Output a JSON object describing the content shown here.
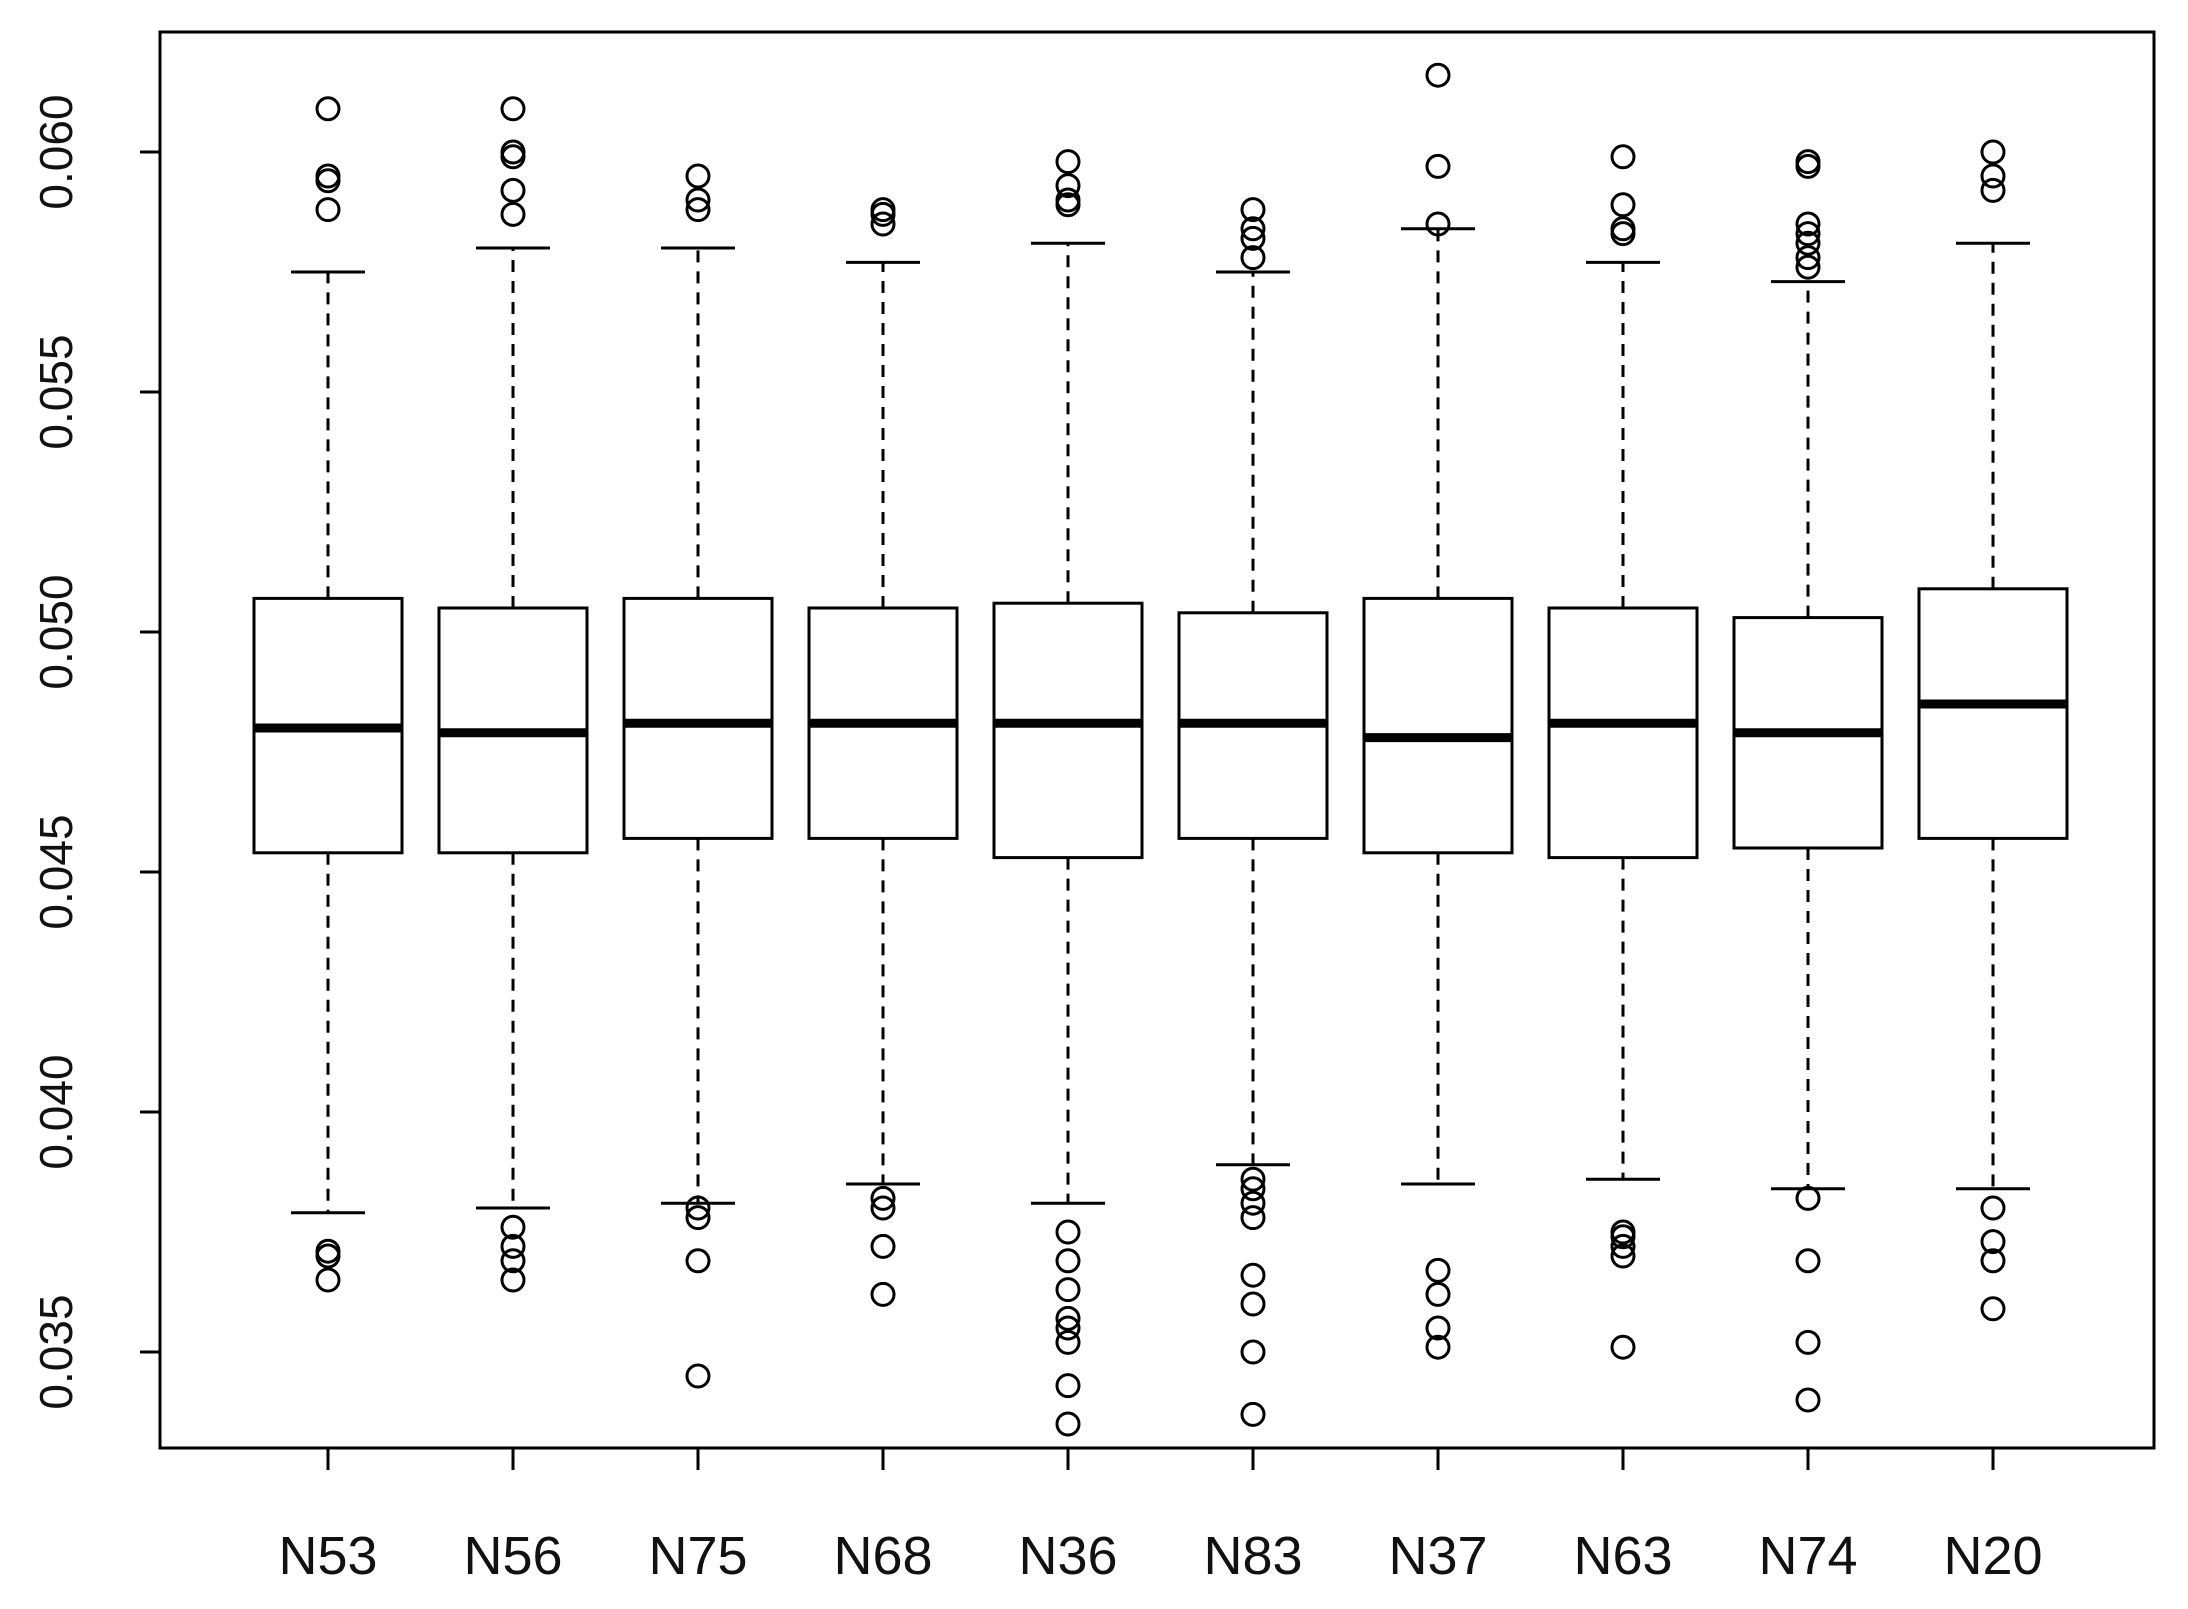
{
  "chart_data": {
    "type": "boxplot",
    "title": "",
    "xlabel": "",
    "ylabel": "",
    "ylim": [
      0.033,
      0.0625
    ],
    "y_ticks": [
      {
        "value": 0.035,
        "label": "0.035"
      },
      {
        "value": 0.04,
        "label": "0.040"
      },
      {
        "value": 0.045,
        "label": "0.045"
      },
      {
        "value": 0.05,
        "label": "0.050"
      },
      {
        "value": 0.055,
        "label": "0.055"
      },
      {
        "value": 0.06,
        "label": "0.060"
      }
    ],
    "categories": [
      "N53",
      "N56",
      "N75",
      "N68",
      "N36",
      "N83",
      "N37",
      "N63",
      "N74",
      "N20"
    ],
    "boxes": [
      {
        "label": "N53",
        "whisker_low": 0.0379,
        "q1": 0.0454,
        "median": 0.048,
        "q3": 0.0507,
        "whisker_high": 0.0575,
        "outliers": [
          0.0365,
          0.037,
          0.0371,
          0.0588,
          0.0594,
          0.0595,
          0.0609
        ]
      },
      {
        "label": "N56",
        "whisker_low": 0.038,
        "q1": 0.0454,
        "median": 0.0479,
        "q3": 0.0505,
        "whisker_high": 0.058,
        "outliers": [
          0.0365,
          0.0369,
          0.0372,
          0.0376,
          0.0587,
          0.0592,
          0.0599,
          0.06,
          0.0609
        ]
      },
      {
        "label": "N75",
        "whisker_low": 0.0381,
        "q1": 0.0457,
        "median": 0.0481,
        "q3": 0.0507,
        "whisker_high": 0.058,
        "outliers": [
          0.0345,
          0.0369,
          0.0378,
          0.038,
          0.0588,
          0.059,
          0.0595
        ]
      },
      {
        "label": "N68",
        "whisker_low": 0.0385,
        "q1": 0.0457,
        "median": 0.0481,
        "q3": 0.0505,
        "whisker_high": 0.0577,
        "outliers": [
          0.0362,
          0.0372,
          0.038,
          0.0382,
          0.0585,
          0.0587,
          0.0588
        ]
      },
      {
        "label": "N36",
        "whisker_low": 0.0381,
        "q1": 0.0453,
        "median": 0.0481,
        "q3": 0.0506,
        "whisker_high": 0.0581,
        "outliers": [
          0.0335,
          0.0343,
          0.0352,
          0.0355,
          0.0357,
          0.0363,
          0.0369,
          0.0375,
          0.0589,
          0.059,
          0.0593,
          0.0598
        ]
      },
      {
        "label": "N83",
        "whisker_low": 0.0389,
        "q1": 0.0457,
        "median": 0.0481,
        "q3": 0.0504,
        "whisker_high": 0.0575,
        "outliers": [
          0.0337,
          0.035,
          0.036,
          0.0366,
          0.0378,
          0.0381,
          0.0384,
          0.0386,
          0.0578,
          0.0582,
          0.0584,
          0.0588
        ]
      },
      {
        "label": "N37",
        "whisker_low": 0.0385,
        "q1": 0.0454,
        "median": 0.0478,
        "q3": 0.0507,
        "whisker_high": 0.0584,
        "outliers": [
          0.0351,
          0.0355,
          0.0362,
          0.0367,
          0.0585,
          0.0597,
          0.0616
        ]
      },
      {
        "label": "N63",
        "whisker_low": 0.0386,
        "q1": 0.0453,
        "median": 0.0481,
        "q3": 0.0505,
        "whisker_high": 0.0577,
        "outliers": [
          0.0351,
          0.037,
          0.0372,
          0.0374,
          0.0375,
          0.0583,
          0.0584,
          0.0589,
          0.0599
        ]
      },
      {
        "label": "N74",
        "whisker_low": 0.0384,
        "q1": 0.0455,
        "median": 0.0479,
        "q3": 0.0503,
        "whisker_high": 0.0573,
        "outliers": [
          0.034,
          0.0352,
          0.0369,
          0.0382,
          0.0576,
          0.0578,
          0.0581,
          0.0583,
          0.0585,
          0.0597,
          0.0598
        ]
      },
      {
        "label": "N20",
        "whisker_low": 0.0384,
        "q1": 0.0457,
        "median": 0.0485,
        "q3": 0.0509,
        "whisker_high": 0.0581,
        "outliers": [
          0.0359,
          0.0369,
          0.0373,
          0.038,
          0.0592,
          0.0595,
          0.06
        ]
      }
    ],
    "grid": false,
    "legend": "none"
  }
}
